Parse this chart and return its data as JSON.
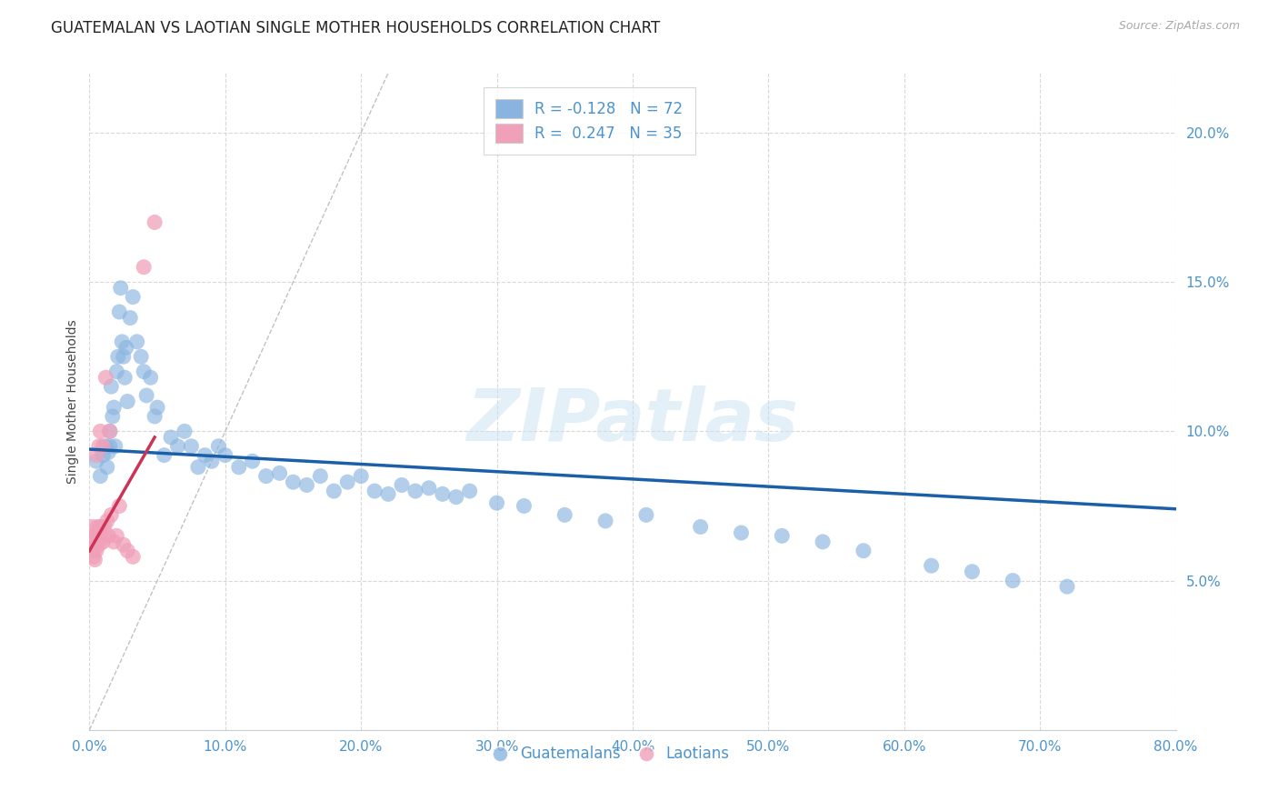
{
  "title": "GUATEMALAN VS LAOTIAN SINGLE MOTHER HOUSEHOLDS CORRELATION CHART",
  "source": "Source: ZipAtlas.com",
  "ylabel": "Single Mother Households",
  "xlim": [
    0,
    0.8
  ],
  "ylim": [
    0,
    0.22
  ],
  "xticks": [
    0.0,
    0.1,
    0.2,
    0.3,
    0.4,
    0.5,
    0.6,
    0.7,
    0.8
  ],
  "xticklabels": [
    "0.0%",
    "10.0%",
    "20.0%",
    "30.0%",
    "40.0%",
    "50.0%",
    "60.0%",
    "70.0%",
    "80.0%"
  ],
  "yticks": [
    0.05,
    0.1,
    0.15,
    0.2
  ],
  "yticklabels": [
    "5.0%",
    "10.0%",
    "15.0%",
    "20.0%"
  ],
  "legend_blue_r": "-0.128",
  "legend_blue_n": "72",
  "legend_pink_r": "0.247",
  "legend_pink_n": "35",
  "blue_color": "#8ab4e0",
  "pink_color": "#f0a0b8",
  "trendline_blue": "#1a5fa8",
  "trendline_pink": "#cc3355",
  "watermark": "ZIPatlas",
  "background_color": "#ffffff",
  "grid_color": "#d8d8d8",
  "axis_color": "#4d94cc",
  "title_fontsize": 12,
  "axis_label_fontsize": 10,
  "tick_fontsize": 11,
  "legend_fontsize": 12,
  "guatemalan_x": [
    0.005,
    0.008,
    0.01,
    0.012,
    0.013,
    0.014,
    0.015,
    0.015,
    0.016,
    0.017,
    0.018,
    0.019,
    0.02,
    0.021,
    0.022,
    0.023,
    0.024,
    0.025,
    0.026,
    0.027,
    0.028,
    0.03,
    0.032,
    0.035,
    0.038,
    0.04,
    0.042,
    0.045,
    0.048,
    0.05,
    0.055,
    0.06,
    0.065,
    0.07,
    0.075,
    0.08,
    0.085,
    0.09,
    0.095,
    0.1,
    0.11,
    0.12,
    0.13,
    0.14,
    0.15,
    0.16,
    0.17,
    0.18,
    0.19,
    0.2,
    0.21,
    0.22,
    0.23,
    0.24,
    0.25,
    0.26,
    0.27,
    0.28,
    0.3,
    0.32,
    0.35,
    0.38,
    0.41,
    0.45,
    0.48,
    0.51,
    0.54,
    0.57,
    0.62,
    0.65,
    0.68,
    0.72
  ],
  "guatemalan_y": [
    0.09,
    0.085,
    0.092,
    0.095,
    0.088,
    0.093,
    0.095,
    0.1,
    0.115,
    0.105,
    0.108,
    0.095,
    0.12,
    0.125,
    0.14,
    0.148,
    0.13,
    0.125,
    0.118,
    0.128,
    0.11,
    0.138,
    0.145,
    0.13,
    0.125,
    0.12,
    0.112,
    0.118,
    0.105,
    0.108,
    0.092,
    0.098,
    0.095,
    0.1,
    0.095,
    0.088,
    0.092,
    0.09,
    0.095,
    0.092,
    0.088,
    0.09,
    0.085,
    0.086,
    0.083,
    0.082,
    0.085,
    0.08,
    0.083,
    0.085,
    0.08,
    0.079,
    0.082,
    0.08,
    0.081,
    0.079,
    0.078,
    0.08,
    0.076,
    0.075,
    0.072,
    0.07,
    0.072,
    0.068,
    0.066,
    0.065,
    0.063,
    0.06,
    0.055,
    0.053,
    0.05,
    0.048
  ],
  "laotian_x": [
    0.002,
    0.002,
    0.003,
    0.003,
    0.003,
    0.004,
    0.004,
    0.004,
    0.005,
    0.005,
    0.005,
    0.006,
    0.006,
    0.006,
    0.007,
    0.007,
    0.008,
    0.008,
    0.009,
    0.01,
    0.01,
    0.011,
    0.012,
    0.013,
    0.014,
    0.015,
    0.016,
    0.018,
    0.02,
    0.022,
    0.025,
    0.028,
    0.032,
    0.04,
    0.048
  ],
  "laotian_y": [
    0.063,
    0.068,
    0.06,
    0.065,
    0.058,
    0.063,
    0.062,
    0.057,
    0.065,
    0.06,
    0.092,
    0.065,
    0.068,
    0.063,
    0.095,
    0.062,
    0.1,
    0.068,
    0.065,
    0.095,
    0.063,
    0.068,
    0.118,
    0.07,
    0.065,
    0.1,
    0.072,
    0.063,
    0.065,
    0.075,
    0.062,
    0.06,
    0.058,
    0.155,
    0.17
  ],
  "blue_trendline_x": [
    0.0,
    0.8
  ],
  "blue_trendline_y": [
    0.094,
    0.074
  ],
  "pink_trendline_x": [
    0.0,
    0.048
  ],
  "pink_trendline_y": [
    0.06,
    0.098
  ],
  "refline_x": [
    0.0,
    0.22
  ],
  "refline_y": [
    0.0,
    0.22
  ]
}
